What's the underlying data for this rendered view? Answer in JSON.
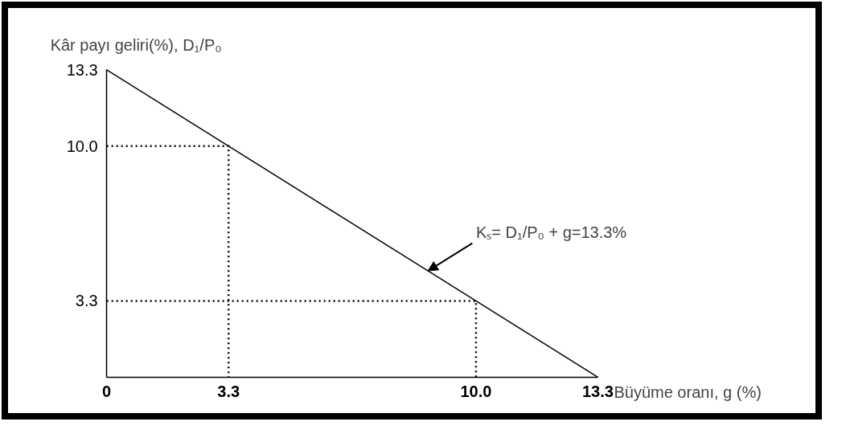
{
  "chart_data": {
    "type": "line",
    "xlabel": "Büyüme oranı, g (%)",
    "ylabel": "Kâr payı geliri(%), D₁/P₀",
    "x": [
      0,
      13.3
    ],
    "series": [
      {
        "color": "#000000",
        "values": [
          13.3,
          0
        ],
        "line_style": "solid"
      },
      {
        "color": "#000000",
        "x": [
          0,
          3.3,
          3.3
        ],
        "values": [
          10.0,
          10.0,
          0
        ],
        "line_style": "dotted"
      },
      {
        "color": "#000000",
        "x": [
          0,
          10.0,
          10.0
        ],
        "values": [
          3.3,
          3.3,
          0
        ],
        "line_style": "dotted"
      }
    ],
    "xlim": [
      0,
      13.3
    ],
    "ylim": [
      0,
      13.3
    ],
    "xticks": [
      0,
      3.3,
      {
        "value": 10.0,
        "label": "10.0"
      },
      13.3
    ],
    "yticks": [
      3.3,
      {
        "value": 10.0,
        "label": "10.0"
      },
      13.3
    ],
    "annotations": [
      {
        "text": "Kₛ= D₁/P₀ + g=13.3%",
        "x": 8.7,
        "y": 4.6
      }
    ],
    "grid": false,
    "marker": "none"
  }
}
